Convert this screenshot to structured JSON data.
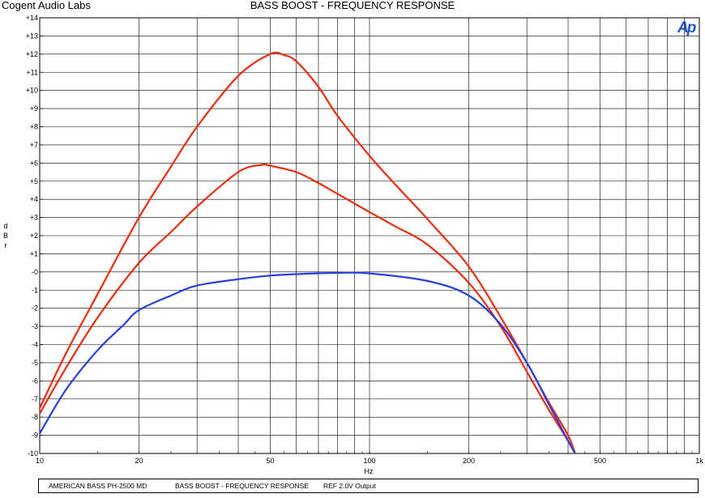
{
  "header": {
    "brand": "Cogent Audio Labs",
    "title": "BASS BOOST  -  FREQUENCY RESPONSE",
    "logo": "Ap"
  },
  "footer": {
    "device": "AMERICAN BASS PH-2500 MD",
    "measurement": "BASS BOOST  -  FREQUENCY RESPONSE",
    "reference": "REF 2.0V Output"
  },
  "colors": {
    "red_series": "#ee2a0d",
    "blue_series": "#2440e0",
    "grid": "#000000",
    "logo": "#2255cc"
  },
  "chart_data": {
    "type": "line",
    "title": "BASS BOOST  -  FREQUENCY RESPONSE",
    "xlabel": "Hz",
    "ylabel": "dBr",
    "xscale": "log",
    "xlim": [
      10,
      1000
    ],
    "ylim": [
      -10,
      14
    ],
    "grid": true,
    "x_tick_labels": [
      {
        "value": 10,
        "label": "10"
      },
      {
        "value": 20,
        "label": "20"
      },
      {
        "value": 50,
        "label": "50"
      },
      {
        "value": 100,
        "label": "100"
      },
      {
        "value": 200,
        "label": "200"
      },
      {
        "value": 500,
        "label": "500"
      },
      {
        "value": 1000,
        "label": "1k"
      }
    ],
    "y_tick_labels": [
      "+14",
      "+13",
      "+12",
      "+11",
      "+10",
      "+9",
      "+8",
      "+7",
      "+6",
      "+5",
      "+4",
      "+3",
      "+2",
      "+1",
      "-0",
      "-1",
      "-2",
      "-3",
      "-4",
      "-5",
      "-6",
      "-7",
      "-8",
      "-9",
      "-10"
    ],
    "series": [
      {
        "color": "#ee2a0d",
        "points": [
          [
            10,
            -7.5
          ],
          [
            12,
            -4.5
          ],
          [
            15,
            -1.2
          ],
          [
            20,
            3.0
          ],
          [
            25,
            5.8
          ],
          [
            30,
            8.0
          ],
          [
            40,
            10.8
          ],
          [
            50,
            12.0
          ],
          [
            55,
            11.95
          ],
          [
            60,
            11.6
          ],
          [
            70,
            10.2
          ],
          [
            80,
            8.6
          ],
          [
            100,
            6.4
          ],
          [
            120,
            4.8
          ],
          [
            150,
            2.9
          ],
          [
            200,
            0.3
          ],
          [
            250,
            -2.5
          ],
          [
            300,
            -5.0
          ],
          [
            350,
            -7.2
          ],
          [
            400,
            -9.0
          ],
          [
            420,
            -10.0
          ]
        ]
      },
      {
        "color": "#ee2a0d",
        "points": [
          [
            10,
            -7.8
          ],
          [
            12,
            -5.3
          ],
          [
            15,
            -2.5
          ],
          [
            20,
            0.5
          ],
          [
            25,
            2.2
          ],
          [
            30,
            3.6
          ],
          [
            40,
            5.5
          ],
          [
            47,
            5.9
          ],
          [
            50,
            5.85
          ],
          [
            60,
            5.5
          ],
          [
            70,
            4.9
          ],
          [
            80,
            4.3
          ],
          [
            100,
            3.3
          ],
          [
            120,
            2.5
          ],
          [
            150,
            1.5
          ],
          [
            200,
            -0.6
          ],
          [
            250,
            -3.0
          ],
          [
            300,
            -5.5
          ],
          [
            350,
            -7.6
          ],
          [
            400,
            -9.3
          ],
          [
            420,
            -10.0
          ]
        ]
      },
      {
        "color": "#2440e0",
        "points": [
          [
            10,
            -8.9
          ],
          [
            12,
            -6.5
          ],
          [
            15,
            -4.3
          ],
          [
            18,
            -2.9
          ],
          [
            20,
            -2.1
          ],
          [
            25,
            -1.3
          ],
          [
            30,
            -0.75
          ],
          [
            40,
            -0.4
          ],
          [
            50,
            -0.2
          ],
          [
            60,
            -0.12
          ],
          [
            80,
            -0.05
          ],
          [
            100,
            -0.08
          ],
          [
            150,
            -0.5
          ],
          [
            200,
            -1.3
          ],
          [
            250,
            -2.9
          ],
          [
            300,
            -5.0
          ],
          [
            350,
            -7.3
          ],
          [
            400,
            -9.3
          ],
          [
            420,
            -10.0
          ]
        ]
      }
    ]
  }
}
